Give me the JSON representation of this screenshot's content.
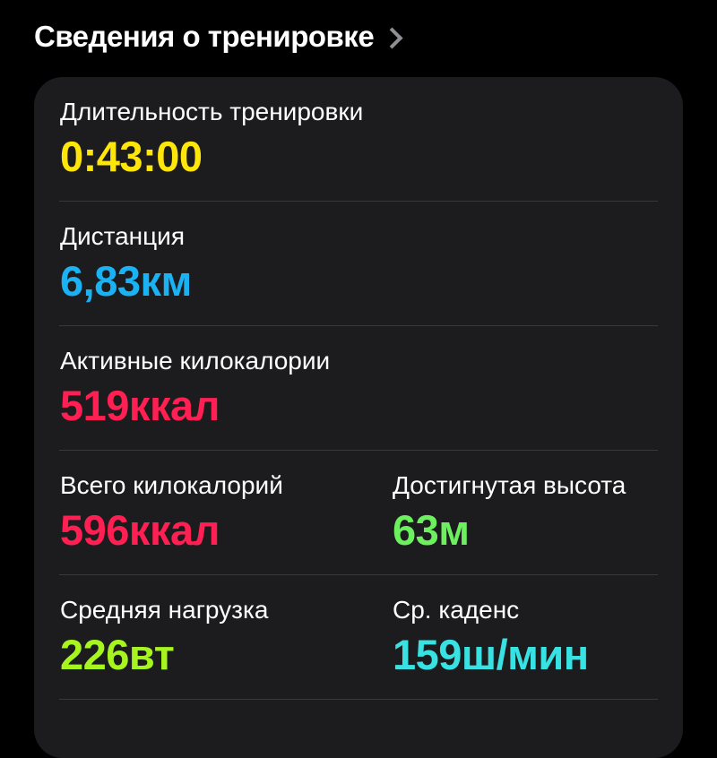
{
  "header": {
    "title": "Сведения о тренировке",
    "chevron_icon": "chevron-right-icon"
  },
  "metrics": [
    {
      "label": "Длительность тренировки",
      "value": "0:43:00",
      "color": "#FFE60A"
    },
    {
      "label": "Дистанция",
      "value": "6,83км",
      "color": "#1AB2F2"
    },
    {
      "label": "Активные килокалории",
      "value": "519ккал",
      "color": "#FF1F52"
    },
    {
      "label": "Всего килокалорий",
      "value": "596ккал",
      "color": "#FF1F52"
    },
    {
      "label": "Достигнутая высота",
      "value": "63м",
      "color": "#6CF05E"
    },
    {
      "label": "Средняя нагрузка",
      "value": "226вт",
      "color": "#A6F51E"
    },
    {
      "label": "Ср. каденс",
      "value": "159ш/мин",
      "color": "#38E2E2"
    }
  ]
}
